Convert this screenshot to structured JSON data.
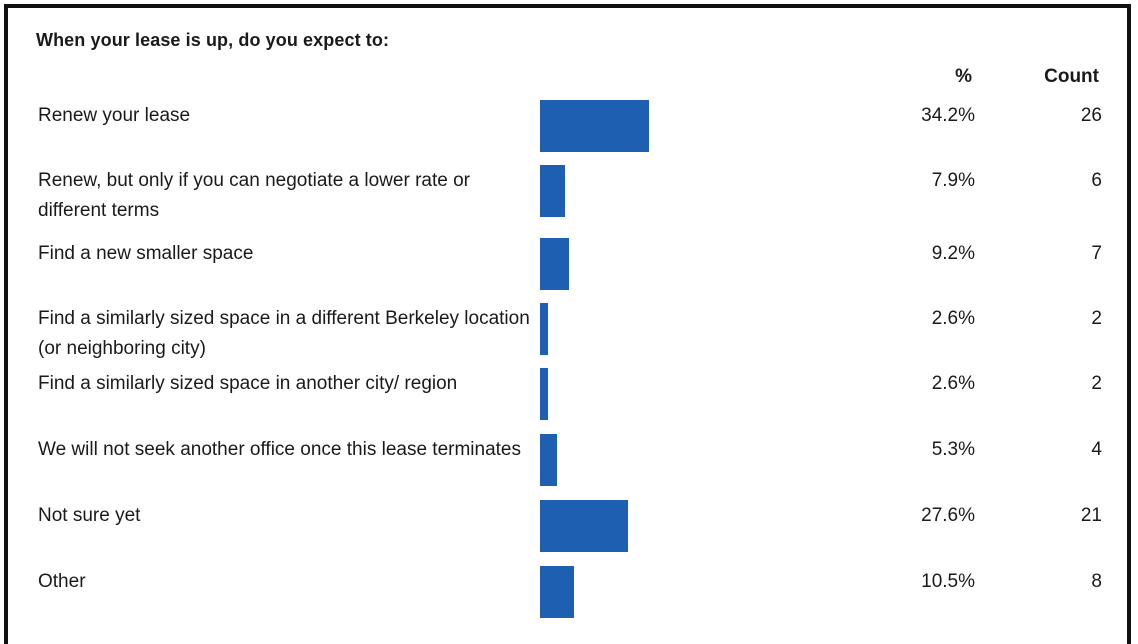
{
  "chart_data": {
    "type": "table",
    "title": "When your lease is up, do you expect to:",
    "columns": [
      "%",
      "Count"
    ],
    "rows": [
      {
        "label": "Renew your lease",
        "percent": 34.2,
        "percent_text": "34.2%",
        "count": 26,
        "count_text": "26"
      },
      {
        "label": "Renew, but only if you can negotiate a lower rate or different terms",
        "percent": 7.9,
        "percent_text": "7.9%",
        "count": 6,
        "count_text": "6"
      },
      {
        "label": "Find a new smaller space",
        "percent": 9.2,
        "percent_text": "9.2%",
        "count": 7,
        "count_text": "7"
      },
      {
        "label": "Find a similarly sized space in a different Berkeley location (or neighboring city)",
        "percent": 2.6,
        "percent_text": "2.6%",
        "count": 2,
        "count_text": "2"
      },
      {
        "label": "Find a similarly sized space in another city/ region",
        "percent": 2.6,
        "percent_text": "2.6%",
        "count": 2,
        "count_text": "2"
      },
      {
        "label": "We will not seek another office once this lease terminates",
        "percent": 5.3,
        "percent_text": "5.3%",
        "count": 4,
        "count_text": "4"
      },
      {
        "label": "Not sure yet",
        "percent": 27.6,
        "percent_text": "27.6%",
        "count": 21,
        "count_text": "21"
      },
      {
        "label": "Other",
        "percent": 10.5,
        "percent_text": "10.5%",
        "count": 8,
        "count_text": "8"
      }
    ],
    "bar_color": "#1f5fb2"
  }
}
